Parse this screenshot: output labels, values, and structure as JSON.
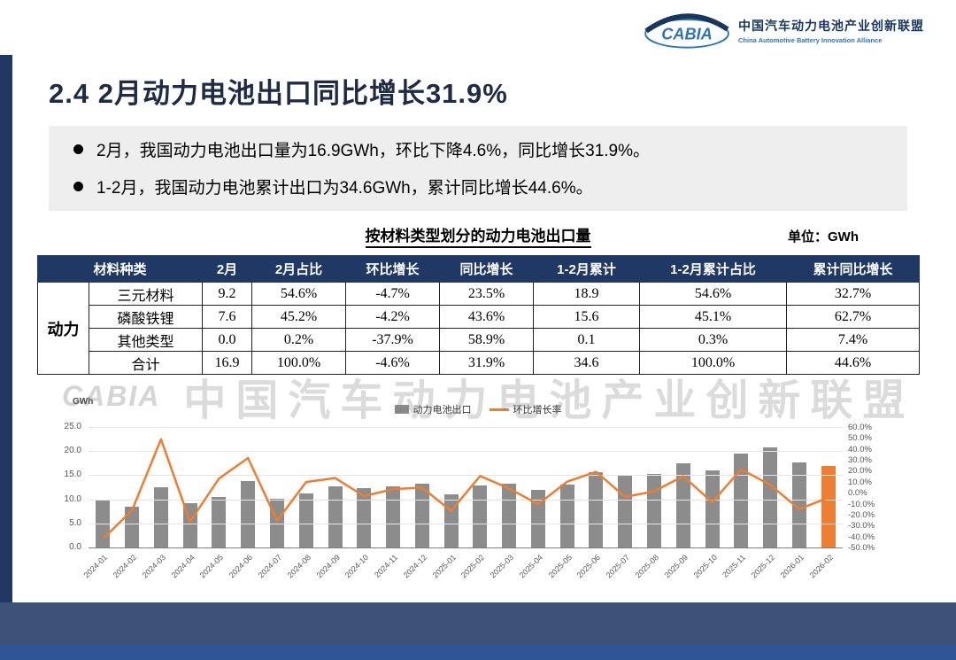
{
  "header": {
    "logo_text": "CABIA",
    "org_cn": "中国汽车动力电池产业创新联盟",
    "org_en": "China Automotive Battery Innovation Alliance"
  },
  "title": "2.4 2月动力电池出口同比增长31.9%",
  "bullets": [
    "2月，我国动力电池出口量为16.9GWh，环比下降4.6%，同比增长31.9%。",
    "1-2月，我国动力电池累计出口为34.6GWh，累计同比增长44.6%。"
  ],
  "table": {
    "title": "按材料类型划分的动力电池出口量",
    "unit": "单位：GWh",
    "group_label": "动力",
    "headers": [
      "材料种类",
      "2月",
      "2月占比",
      "环比增长",
      "同比增长",
      "1-2月累计",
      "1-2月累计占比",
      "累计同比增长"
    ],
    "rows": [
      [
        "三元材料",
        "9.2",
        "54.6%",
        "-4.7%",
        "23.5%",
        "18.9",
        "54.6%",
        "32.7%"
      ],
      [
        "磷酸铁锂",
        "7.6",
        "45.2%",
        "-4.2%",
        "43.6%",
        "15.6",
        "45.1%",
        "62.7%"
      ],
      [
        "其他类型",
        "0.0",
        "0.2%",
        "-37.9%",
        "58.9%",
        "0.1",
        "0.3%",
        "7.4%"
      ],
      [
        "合计",
        "16.9",
        "100.0%",
        "-4.6%",
        "31.9%",
        "34.6",
        "100.0%",
        "44.6%"
      ]
    ]
  },
  "chart_data": {
    "type": "bar",
    "title": "",
    "categories": [
      "2024-01",
      "2024-02",
      "2024-03",
      "2024-04",
      "2024-05",
      "2024-06",
      "2024-07",
      "2024-08",
      "2024-09",
      "2024-10",
      "2024-11",
      "2024-12",
      "2025-01",
      "2025-02",
      "2025-03",
      "2025-04",
      "2025-05",
      "2025-06",
      "2025-07",
      "2025-08",
      "2025-09",
      "2025-10",
      "2025-11",
      "2025-12",
      "2026-01",
      "2026-02"
    ],
    "series": [
      {
        "name": "动力电池出口",
        "type": "bar",
        "axis": "left",
        "color": "#8C8C8C",
        "highlight_last_color": "#ED7D31",
        "values": [
          10.0,
          8.4,
          12.5,
          9.2,
          10.4,
          13.7,
          10.2,
          11.2,
          12.7,
          12.3,
          12.7,
          13.3,
          11.1,
          12.8,
          13.3,
          11.9,
          13.1,
          15.6,
          15.0,
          15.2,
          17.5,
          16.0,
          19.4,
          20.8,
          17.7,
          16.9
        ]
      },
      {
        "name": "环比增长率",
        "type": "line",
        "axis": "right",
        "color": "#ED7D31",
        "values": [
          -42.0,
          -16.0,
          48.8,
          -26.4,
          13.0,
          31.7,
          -25.5,
          9.8,
          13.4,
          -3.1,
          3.3,
          4.7,
          -16.5,
          15.3,
          3.9,
          -10.5,
          10.1,
          19.1,
          -3.8,
          1.3,
          15.1,
          -8.6,
          21.3,
          7.2,
          -14.9,
          -4.6
        ]
      }
    ],
    "left_axis": {
      "label": "GWh",
      "min": 0,
      "max": 25,
      "ticks": [
        "25.0",
        "20.0",
        "15.0",
        "10.0",
        "5.0",
        "0.0"
      ]
    },
    "right_axis": {
      "min": -50,
      "max": 60,
      "ticks": [
        "60.0%",
        "50.0%",
        "40.0%",
        "30.0%",
        "20.0%",
        "10.0%",
        "0.0%",
        "-10.0%",
        "-20.0%",
        "-30.0%",
        "-40.0%",
        "-50.0%"
      ]
    },
    "legend_position": "top",
    "grid": true
  },
  "watermark": {
    "logo": "CABIA",
    "text": "中国汽车动力电池产业创新联盟"
  },
  "colors": {
    "table_header_bg": "#1F3864",
    "left_strip": "#1F3864",
    "footer_band": "#3D5277",
    "footer_strip": "#2F5597",
    "bar": "#8C8C8C",
    "highlight_orange": "#ED7D31"
  }
}
